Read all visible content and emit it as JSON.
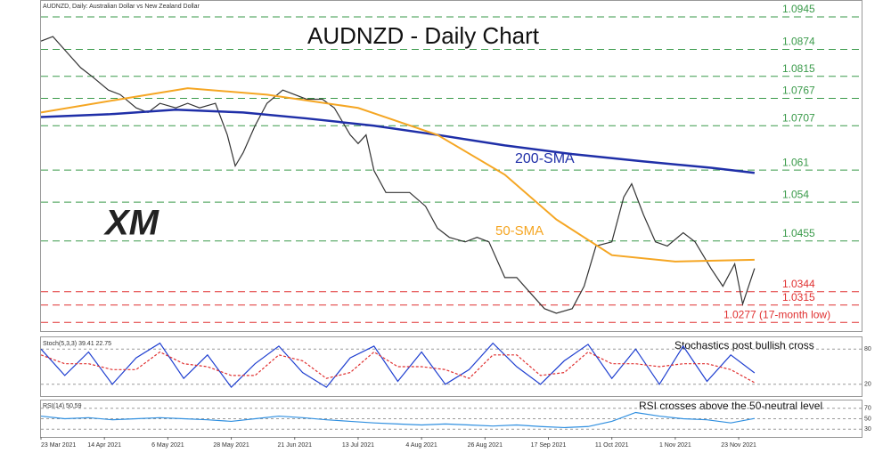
{
  "chart_data": [
    {
      "type": "line",
      "header": "AUDNZD, Daily:  Australian Dollar vs New Zealand Dollar",
      "title": "AUDNZD - Daily Chart",
      "logo": "XM",
      "xlim": [
        0,
        207
      ],
      "ylim": [
        1.0258,
        1.098
      ],
      "series": [
        {
          "color": "#333333",
          "x": [
            0,
            3,
            7,
            10,
            13,
            17,
            20,
            24,
            27,
            30,
            34,
            37,
            40,
            44,
            47,
            49,
            51,
            54,
            57,
            61,
            64,
            67,
            71,
            74,
            78,
            80,
            82,
            84,
            87,
            90,
            93,
            97,
            100,
            103,
            107,
            110,
            113,
            117,
            120,
            124,
            127,
            130,
            134,
            137,
            140,
            144,
            147,
            149,
            152,
            155,
            158,
            162,
            165,
            169,
            172,
            175,
            177,
            180
          ],
          "values": [
            1.0892,
            1.0902,
            1.0863,
            1.0834,
            1.0814,
            1.0785,
            1.0775,
            1.0746,
            1.0736,
            1.0756,
            1.0746,
            1.0756,
            1.0746,
            1.0756,
            1.0687,
            1.0619,
            1.0648,
            1.0707,
            1.0756,
            1.0785,
            1.0775,
            1.0765,
            1.0765,
            1.0746,
            1.0687,
            1.0668,
            1.0687,
            1.0609,
            1.0561,
            1.0561,
            1.0561,
            1.0531,
            1.0483,
            1.0463,
            1.0453,
            1.0463,
            1.0453,
            1.0375,
            1.0375,
            1.0336,
            1.0307,
            1.0297,
            1.0307,
            1.0356,
            1.0444,
            1.0453,
            1.0551,
            1.058,
            1.0512,
            1.0453,
            1.0444,
            1.0473,
            1.0453,
            1.0395,
            1.0356,
            1.0405,
            1.0317,
            1.0395
          ]
        },
        {
          "name": "200-SMA",
          "color": "#1f2fa8",
          "width": 2.5,
          "x": [
            0,
            17,
            34,
            51,
            67,
            84,
            100,
            117,
            134,
            152,
            169,
            180
          ],
          "values": [
            1.0726,
            1.0732,
            1.0742,
            1.0736,
            1.0723,
            1.0707,
            1.0687,
            1.0664,
            1.0645,
            1.0629,
            1.0615,
            1.0604
          ]
        },
        {
          "name": "50-SMA",
          "color": "#f5a623",
          "width": 2,
          "x": [
            0,
            20,
            37,
            57,
            80,
            100,
            117,
            130,
            144,
            160,
            180
          ],
          "values": [
            1.0736,
            1.0765,
            1.0789,
            1.0775,
            1.0746,
            1.0687,
            1.06,
            1.0502,
            1.0424,
            1.041,
            1.0414
          ]
        }
      ],
      "levels": [
        {
          "value": 1.0945,
          "color": "#3a9a4a"
        },
        {
          "value": 1.0874,
          "color": "#3a9a4a"
        },
        {
          "value": 1.0815,
          "color": "#3a9a4a"
        },
        {
          "value": 1.0767,
          "color": "#3a9a4a"
        },
        {
          "value": 1.0707,
          "color": "#3a9a4a"
        },
        {
          "value": 1.061,
          "color": "#3a9a4a"
        },
        {
          "value": 1.054,
          "color": "#3a9a4a"
        },
        {
          "value": 1.0455,
          "color": "#3a9a4a"
        },
        {
          "value": 1.0344,
          "color": "#e03030"
        },
        {
          "value": 1.0315,
          "color": "#e03030"
        },
        {
          "value": 1.0277,
          "label": "1.0277 (17-month low)",
          "color": "#e03030"
        }
      ]
    },
    {
      "type": "line",
      "header": "Stoch(5,3,3) 39.41 22.75",
      "annotation": "Stochastics post bullish cross",
      "xlim": [
        0,
        207
      ],
      "ylim": [
        0,
        100
      ],
      "yticks": [
        20,
        80
      ],
      "series": [
        {
          "color": "#1f3fd0",
          "x": [
            0,
            6,
            12,
            18,
            24,
            30,
            36,
            42,
            48,
            54,
            60,
            66,
            72,
            78,
            84,
            90,
            96,
            102,
            108,
            114,
            120,
            126,
            132,
            138,
            144,
            150,
            156,
            162,
            168,
            174,
            180
          ],
          "values": [
            80,
            35,
            75,
            20,
            65,
            90,
            30,
            70,
            15,
            55,
            85,
            40,
            15,
            65,
            85,
            25,
            75,
            20,
            45,
            90,
            50,
            20,
            60,
            88,
            30,
            80,
            20,
            85,
            25,
            70,
            39.41
          ]
        },
        {
          "color": "#e03030",
          "dash": "3,2",
          "x": [
            0,
            6,
            12,
            18,
            24,
            30,
            36,
            42,
            48,
            54,
            60,
            66,
            72,
            78,
            84,
            90,
            96,
            102,
            108,
            114,
            120,
            126,
            132,
            138,
            144,
            150,
            156,
            162,
            168,
            174,
            180
          ],
          "values": [
            70,
            55,
            55,
            45,
            45,
            75,
            55,
            50,
            35,
            35,
            70,
            60,
            30,
            40,
            75,
            50,
            50,
            45,
            30,
            70,
            70,
            35,
            40,
            75,
            55,
            55,
            50,
            55,
            55,
            45,
            22.75
          ]
        }
      ]
    },
    {
      "type": "line",
      "header": "RSI(14) 50.59",
      "annotation": "RSI crosses above the 50-neutral level",
      "xlim": [
        0,
        207
      ],
      "ylim": [
        15,
        85
      ],
      "yticks": [
        30,
        50,
        70
      ],
      "xticks": [
        {
          "value": 0,
          "label": "23 Mar 2021"
        },
        {
          "value": 16,
          "label": "14 Apr 2021"
        },
        {
          "value": 32,
          "label": "6 May 2021"
        },
        {
          "value": 48,
          "label": "28 May 2021"
        },
        {
          "value": 64,
          "label": "21 Jun 2021"
        },
        {
          "value": 80,
          "label": "13 Jul 2021"
        },
        {
          "value": 96,
          "label": "4 Aug 2021"
        },
        {
          "value": 112,
          "label": "26 Aug 2021"
        },
        {
          "value": 128,
          "label": "17 Sep 2021"
        },
        {
          "value": 144,
          "label": "11 Oct 2021"
        },
        {
          "value": 160,
          "label": "1 Nov 2021"
        },
        {
          "value": 176,
          "label": "23 Nov 2021"
        }
      ],
      "series": [
        {
          "color": "#2f8fe0",
          "x": [
            0,
            6,
            12,
            18,
            24,
            30,
            36,
            42,
            48,
            54,
            60,
            66,
            72,
            78,
            84,
            90,
            96,
            102,
            108,
            114,
            120,
            126,
            132,
            138,
            144,
            150,
            156,
            162,
            168,
            174,
            180
          ],
          "values": [
            55,
            50,
            52,
            48,
            50,
            52,
            50,
            48,
            45,
            50,
            55,
            52,
            48,
            45,
            42,
            40,
            38,
            40,
            38,
            36,
            38,
            35,
            33,
            35,
            45,
            62,
            55,
            50,
            48,
            42,
            50.59
          ]
        }
      ]
    }
  ]
}
